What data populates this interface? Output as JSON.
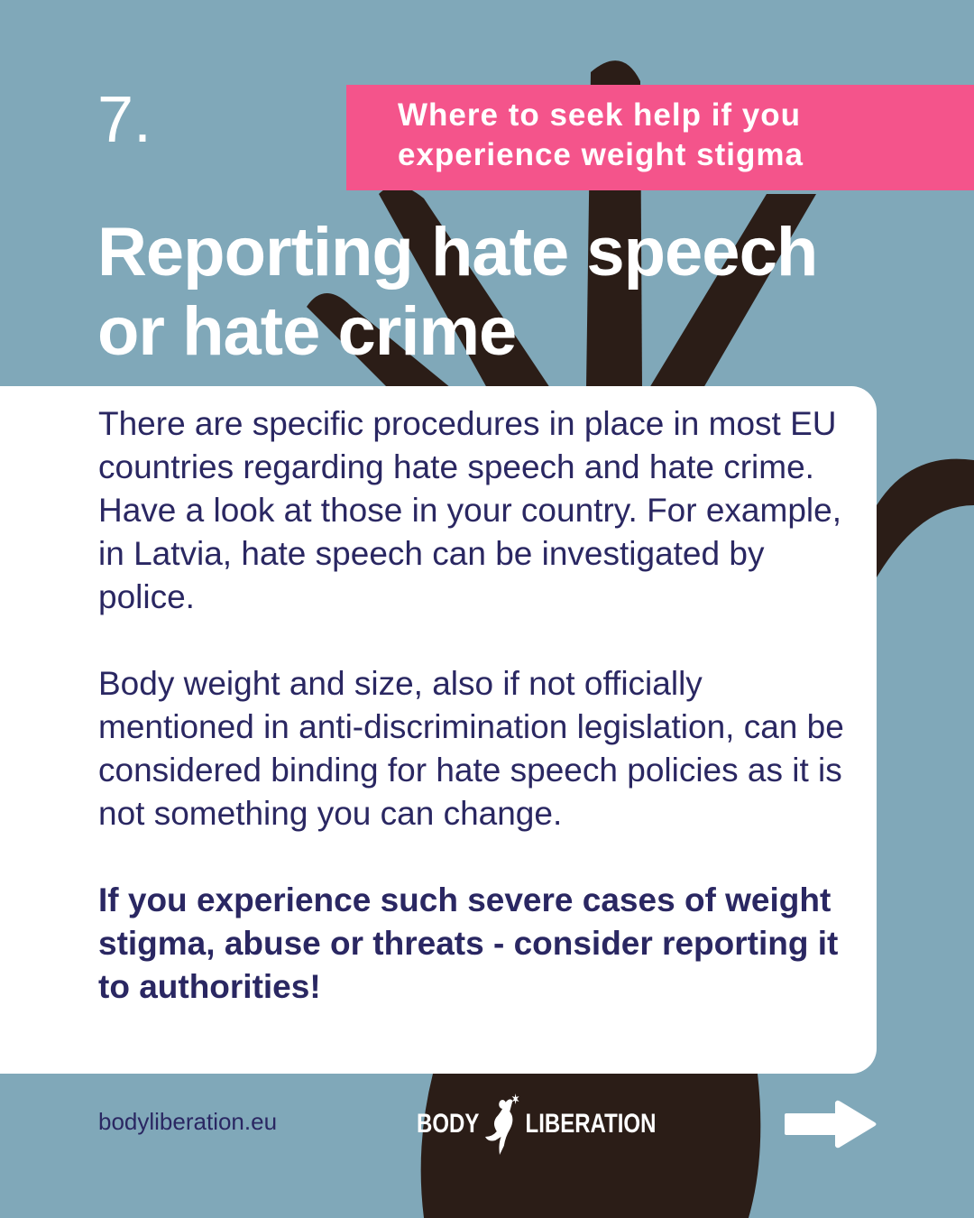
{
  "colors": {
    "background": "#80a8b9",
    "accent_pink": "#f4548b",
    "text_navy": "#2a2762",
    "hand": "#2b1d17"
  },
  "step_number": "7.",
  "subtitle": {
    "line1": "Where to seek help if you",
    "line2": "experience weight stigma"
  },
  "title": {
    "line1": "Reporting hate speech",
    "line2": "or hate crime"
  },
  "body": {
    "paragraph1": "There are specific procedures in place in most EU countries regarding hate speech and hate crime. Have a look at those in your country. For example, in Latvia, hate speech can be investigated by police.",
    "paragraph2": "Body weight and size, also if not officially mentioned in anti-discrimination legislation, can be considered binding for hate speech policies as it is not something you can change.",
    "callout": "If you experience such severe cases of weight stigma, abuse or threats - consider reporting it to authorities!"
  },
  "footer": {
    "website": "bodyliberation.eu",
    "logo_left": "BODY",
    "logo_right": "LIBERATION",
    "next_icon": "arrow-right-icon"
  }
}
